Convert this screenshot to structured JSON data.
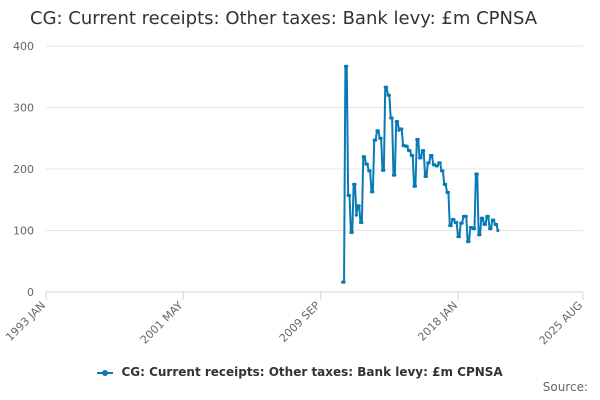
{
  "chart_data": {
    "type": "line",
    "title": "CG: Current receipts: Other taxes: Bank levy: £m CPNSA",
    "xlabel": "",
    "ylabel": "",
    "x_range": [
      "1993 JAN",
      "2025 AUG"
    ],
    "x_ticks": [
      "1993 JAN",
      "2001 MAY",
      "2009 SEP",
      "2018 JAN",
      "2025 AUG"
    ],
    "ylim": [
      0,
      400
    ],
    "y_ticks": [
      0,
      100,
      200,
      300,
      400
    ],
    "grid": true,
    "legend_position": "bottom",
    "series": [
      {
        "name": "CG: Current receipts: Other taxes: Bank levy: £m CPNSA",
        "color": "#0a7ab5",
        "points": [
          [
            "2011-01",
            16
          ],
          [
            "2011-02",
            16
          ],
          [
            "2011-03",
            367
          ],
          [
            "2011-04",
            367
          ],
          [
            "2011-05",
            157
          ],
          [
            "2011-06",
            157
          ],
          [
            "2011-07",
            97
          ],
          [
            "2011-08",
            97
          ],
          [
            "2011-09",
            175
          ],
          [
            "2011-10",
            175
          ],
          [
            "2011-11",
            125
          ],
          [
            "2011-12",
            140
          ],
          [
            "2012-01",
            140
          ],
          [
            "2012-02",
            113
          ],
          [
            "2012-03",
            113
          ],
          [
            "2012-04",
            220
          ],
          [
            "2012-05",
            220
          ],
          [
            "2012-06",
            208
          ],
          [
            "2012-07",
            208
          ],
          [
            "2012-08",
            197
          ],
          [
            "2012-09",
            197
          ],
          [
            "2012-10",
            163
          ],
          [
            "2012-11",
            163
          ],
          [
            "2012-12",
            247
          ],
          [
            "2013-01",
            247
          ],
          [
            "2013-02",
            262
          ],
          [
            "2013-03",
            262
          ],
          [
            "2013-04",
            250
          ],
          [
            "2013-05",
            250
          ],
          [
            "2013-06",
            198
          ],
          [
            "2013-07",
            198
          ],
          [
            "2013-08",
            333
          ],
          [
            "2013-09",
            333
          ],
          [
            "2013-10",
            320
          ],
          [
            "2013-11",
            320
          ],
          [
            "2013-12",
            283
          ],
          [
            "2014-01",
            283
          ],
          [
            "2014-02",
            190
          ],
          [
            "2014-03",
            190
          ],
          [
            "2014-04",
            277
          ],
          [
            "2014-05",
            277
          ],
          [
            "2014-06",
            263
          ],
          [
            "2014-07",
            265
          ],
          [
            "2014-08",
            265
          ],
          [
            "2014-09",
            238
          ],
          [
            "2014-10",
            238
          ],
          [
            "2014-11",
            237
          ],
          [
            "2014-12",
            237
          ],
          [
            "2015-01",
            230
          ],
          [
            "2015-02",
            230
          ],
          [
            "2015-03",
            222
          ],
          [
            "2015-04",
            222
          ],
          [
            "2015-05",
            172
          ],
          [
            "2015-06",
            172
          ],
          [
            "2015-07",
            248
          ],
          [
            "2015-08",
            248
          ],
          [
            "2015-09",
            218
          ],
          [
            "2015-10",
            218
          ],
          [
            "2015-11",
            230
          ],
          [
            "2015-12",
            230
          ],
          [
            "2016-01",
            188
          ],
          [
            "2016-02",
            188
          ],
          [
            "2016-03",
            210
          ],
          [
            "2016-04",
            210
          ],
          [
            "2016-05",
            222
          ],
          [
            "2016-06",
            222
          ],
          [
            "2016-07",
            207
          ],
          [
            "2016-08",
            207
          ],
          [
            "2016-09",
            205
          ],
          [
            "2016-10",
            205
          ],
          [
            "2016-11",
            210
          ],
          [
            "2016-12",
            210
          ],
          [
            "2017-01",
            197
          ],
          [
            "2017-02",
            197
          ],
          [
            "2017-03",
            175
          ],
          [
            "2017-04",
            175
          ],
          [
            "2017-05",
            162
          ],
          [
            "2017-06",
            162
          ],
          [
            "2017-07",
            108
          ],
          [
            "2017-08",
            108
          ],
          [
            "2017-09",
            118
          ],
          [
            "2017-10",
            118
          ],
          [
            "2017-11",
            113
          ],
          [
            "2017-12",
            113
          ],
          [
            "2018-01",
            90
          ],
          [
            "2018-02",
            90
          ],
          [
            "2018-03",
            112
          ],
          [
            "2018-04",
            112
          ],
          [
            "2018-05",
            123
          ],
          [
            "2018-06",
            123
          ],
          [
            "2018-07",
            123
          ],
          [
            "2018-08",
            82
          ],
          [
            "2018-09",
            82
          ],
          [
            "2018-10",
            105
          ],
          [
            "2018-11",
            105
          ],
          [
            "2018-12",
            103
          ],
          [
            "2019-01",
            103
          ],
          [
            "2019-02",
            192
          ],
          [
            "2019-03",
            192
          ],
          [
            "2019-04",
            93
          ],
          [
            "2019-05",
            93
          ],
          [
            "2019-06",
            120
          ],
          [
            "2019-07",
            120
          ],
          [
            "2019-08",
            110
          ],
          [
            "2019-09",
            110
          ],
          [
            "2019-10",
            123
          ],
          [
            "2019-11",
            123
          ],
          [
            "2019-12",
            103
          ],
          [
            "2020-01",
            103
          ],
          [
            "2020-02",
            117
          ],
          [
            "2020-03",
            117
          ],
          [
            "2020-04",
            110
          ],
          [
            "2020-05",
            110
          ],
          [
            "2020-06",
            100
          ]
        ]
      }
    ]
  },
  "footer": {
    "source_label": "Source:"
  }
}
